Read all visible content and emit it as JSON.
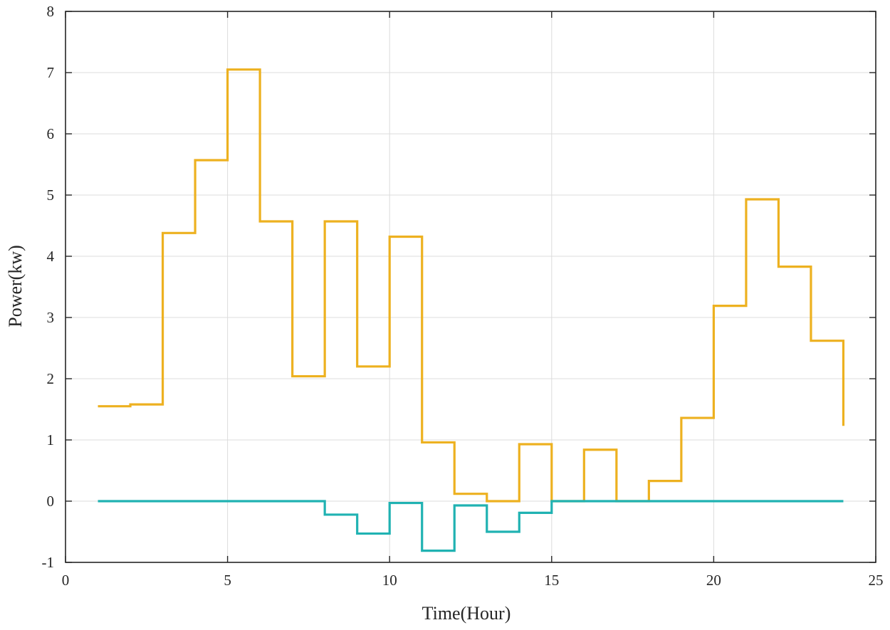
{
  "chart_data": {
    "type": "line",
    "step": "post",
    "title": "",
    "xlabel": "Time(Hour)",
    "ylabel": "Power(kw)",
    "xlim": [
      0,
      25
    ],
    "ylim": [
      -1,
      8
    ],
    "xticks": [
      0,
      5,
      10,
      15,
      20,
      25
    ],
    "yticks": [
      -1,
      0,
      1,
      2,
      3,
      4,
      5,
      6,
      7,
      8
    ],
    "grid": true,
    "legend": "none",
    "series": [
      {
        "color": "#EDB120",
        "x": [
          1,
          2,
          3,
          4,
          5,
          6,
          7,
          8,
          9,
          10,
          11,
          12,
          13,
          14,
          15,
          16,
          17,
          18,
          19,
          20,
          21,
          22,
          23,
          24
        ],
        "y": [
          1.55,
          1.58,
          4.38,
          5.57,
          7.05,
          4.57,
          2.04,
          4.57,
          2.2,
          4.32,
          0.96,
          0.12,
          0.0,
          0.93,
          0.0,
          0.84,
          0.0,
          0.33,
          1.36,
          3.19,
          4.93,
          3.83,
          2.62,
          1.23
        ]
      },
      {
        "color": "#20B2B2",
        "x": [
          1,
          2,
          3,
          4,
          5,
          6,
          7,
          8,
          9,
          10,
          11,
          12,
          13,
          14,
          15,
          16,
          17,
          18,
          19,
          20,
          21,
          22,
          23,
          24
        ],
        "y": [
          0,
          0,
          0,
          0,
          0,
          0,
          0,
          -0.22,
          -0.53,
          -0.03,
          -0.81,
          -0.07,
          -0.5,
          -0.19,
          0,
          0,
          0,
          0,
          0,
          0,
          0,
          0,
          0,
          0
        ]
      }
    ]
  }
}
